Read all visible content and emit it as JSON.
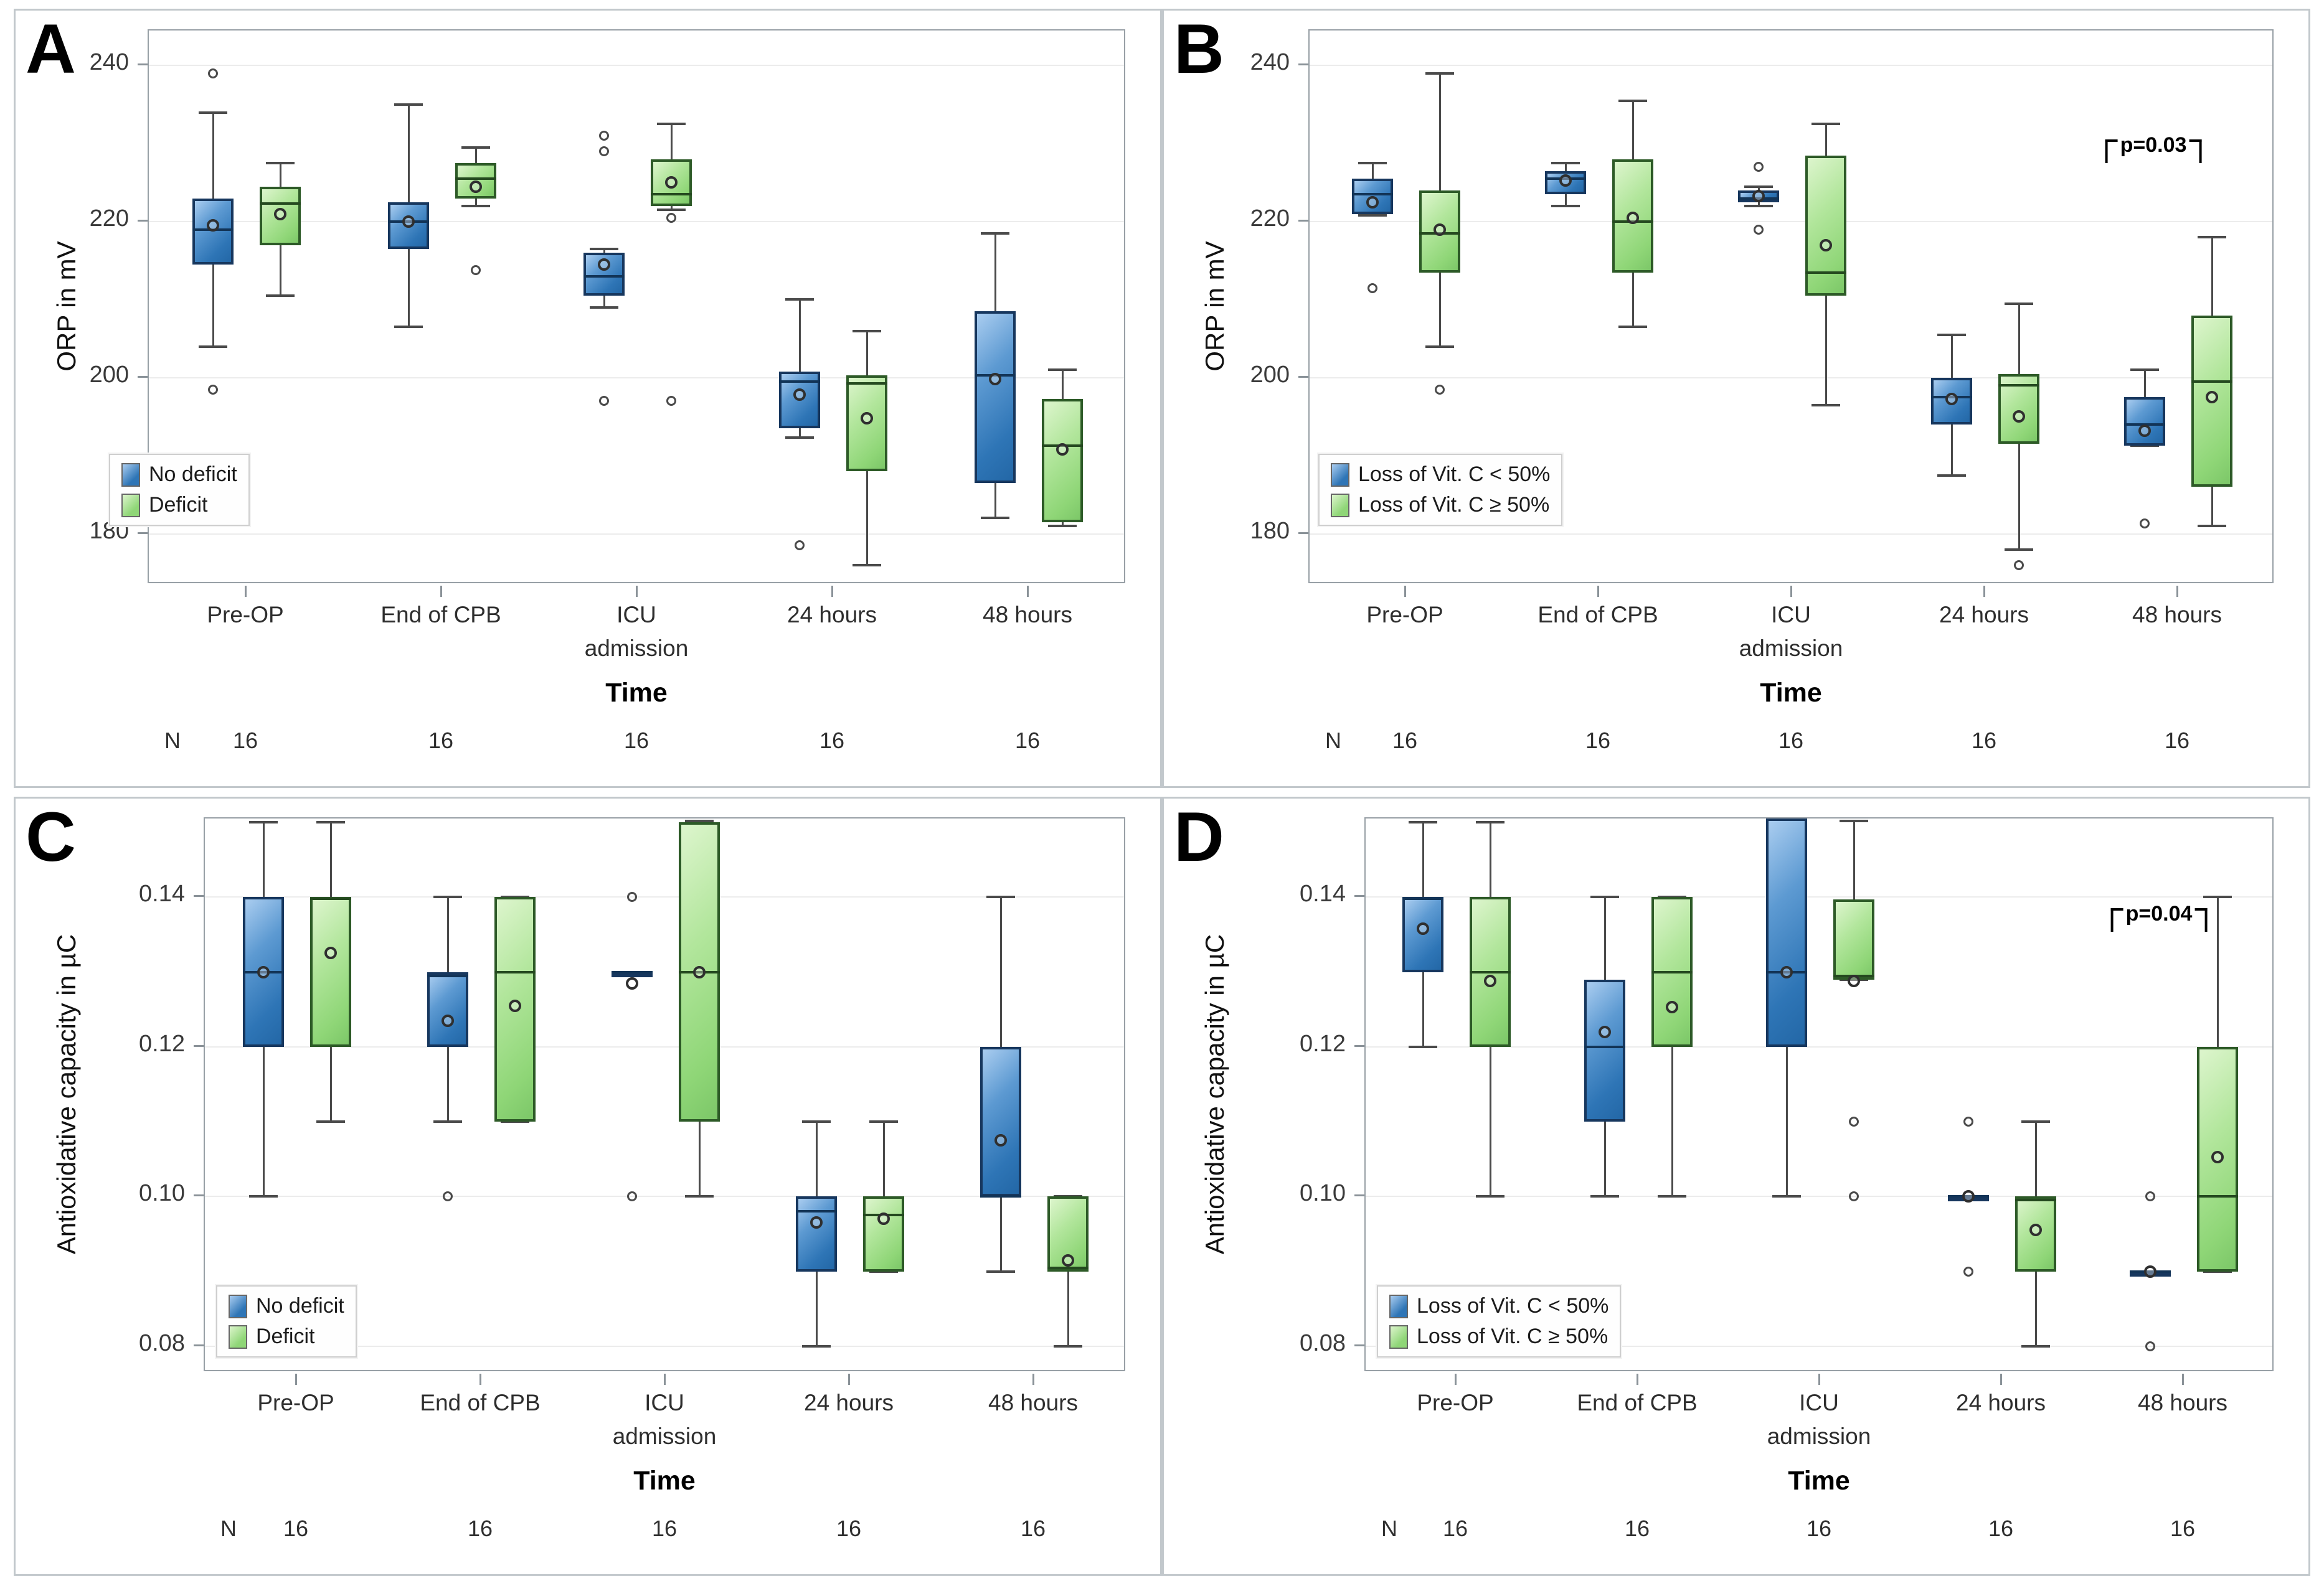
{
  "figure": {
    "background": "#ffffff",
    "colors": {
      "blue_fill_light": "#aacdf0",
      "blue_fill_dark": "#2e75b6",
      "blue_border": "#17375e",
      "green_fill_light": "#ddf5cd",
      "green_fill_dark": "#8fd677",
      "green_border": "#2d5a27",
      "whisker": "#4a4a4a",
      "grid": "#ececec",
      "frame": "#98a0a6",
      "panel_border": "#c2c8cc"
    }
  },
  "chart_data": [
    {
      "panel": "A",
      "type": "box",
      "ylabel": "ORP in mV",
      "xlabel": "Time",
      "ylim": [
        173.5,
        244.5
      ],
      "yticks": [
        240,
        220,
        200,
        180
      ],
      "ytick_labels": [
        "240",
        "220",
        "200",
        "180"
      ],
      "categories": [
        [
          "Pre-OP"
        ],
        [
          "End of CPB"
        ],
        [
          "ICU",
          "admission"
        ],
        [
          "24 hours"
        ],
        [
          "48 hours"
        ]
      ],
      "n_label": "N",
      "n_values": [
        "16",
        "16",
        "16",
        "16",
        "16"
      ],
      "legend": [
        {
          "label": "No deficit",
          "color": "blue"
        },
        {
          "label": "Deficit",
          "color": "green"
        }
      ],
      "annotation": null,
      "series": [
        {
          "name": "No deficit",
          "color": "blue",
          "boxes": [
            {
              "whislo": 204,
              "q1": 214.5,
              "med": 219,
              "q3": 223,
              "whishi": 234,
              "mean": 219.5,
              "outliers": [
                239,
                198.5
              ]
            },
            {
              "whislo": 206.5,
              "q1": 216.5,
              "med": 220,
              "q3": 222.5,
              "whishi": 235,
              "mean": 220,
              "outliers": []
            },
            {
              "whislo": 209,
              "q1": 210.5,
              "med": 213,
              "q3": 216,
              "whishi": 216.5,
              "mean": 214.5,
              "outliers": [
                231,
                229,
                197
              ]
            },
            {
              "whislo": 192.3,
              "q1": 193.5,
              "med": 199.5,
              "q3": 200.8,
              "whishi": 210,
              "mean": 197.8,
              "outliers": [
                178.5
              ]
            },
            {
              "whislo": 182,
              "q1": 186.5,
              "med": 200.3,
              "q3": 208.5,
              "whishi": 218.5,
              "mean": 199.8,
              "outliers": []
            }
          ]
        },
        {
          "name": "Deficit",
          "color": "green",
          "boxes": [
            {
              "whislo": 210.5,
              "q1": 217,
              "med": 222.3,
              "q3": 224.5,
              "whishi": 227.5,
              "mean": 221,
              "outliers": []
            },
            {
              "whislo": 222,
              "q1": 223,
              "med": 225.5,
              "q3": 227.5,
              "whishi": 229.5,
              "mean": 224.5,
              "outliers": [
                213.8
              ]
            },
            {
              "whislo": 221.5,
              "q1": 222,
              "med": 223.5,
              "q3": 228,
              "whishi": 232.5,
              "mean": 225,
              "outliers": [
                220.5,
                197
              ]
            },
            {
              "whislo": 176,
              "q1": 188,
              "med": 199.3,
              "q3": 200.3,
              "whishi": 206,
              "mean": 194.8,
              "outliers": []
            },
            {
              "whislo": 181,
              "q1": 181.5,
              "med": 191.3,
              "q3": 197.3,
              "whishi": 201,
              "mean": 190.8,
              "outliers": []
            }
          ]
        }
      ]
    },
    {
      "panel": "B",
      "type": "box",
      "ylabel": "ORP in mV",
      "xlabel": "Time",
      "ylim": [
        173.5,
        244.5
      ],
      "yticks": [
        240,
        220,
        200,
        180
      ],
      "ytick_labels": [
        "240",
        "220",
        "200",
        "180"
      ],
      "categories": [
        [
          "Pre-OP"
        ],
        [
          "End of CPB"
        ],
        [
          "ICU",
          "admission"
        ],
        [
          "24 hours"
        ],
        [
          "48 hours"
        ]
      ],
      "n_label": "N",
      "n_values": [
        "16",
        "16",
        "16",
        "16",
        "16"
      ],
      "legend": [
        {
          "label": "Loss of Vit. C < 50%",
          "color": "blue"
        },
        {
          "label": "Loss of Vit. C ≥ 50%",
          "color": "green"
        }
      ],
      "annotation": {
        "text": "p=0.03",
        "value": 230.5
      },
      "series": [
        {
          "name": "Loss of Vit. C < 50%",
          "color": "blue",
          "boxes": [
            {
              "whislo": 220.8,
              "q1": 221,
              "med": 223.5,
              "q3": 225.5,
              "whishi": 227.5,
              "mean": 222.5,
              "outliers": [
                211.5
              ]
            },
            {
              "whislo": 222,
              "q1": 223.5,
              "med": 225.5,
              "q3": 226.5,
              "whishi": 227.5,
              "mean": 225.3,
              "outliers": []
            },
            {
              "whislo": 222,
              "q1": 222.5,
              "med": 223,
              "q3": 224,
              "whishi": 224.5,
              "mean": 223.3,
              "outliers": [
                227,
                219
              ]
            },
            {
              "whislo": 187.5,
              "q1": 194,
              "med": 197.5,
              "q3": 200,
              "whishi": 205.5,
              "mean": 197.3,
              "outliers": []
            },
            {
              "whislo": 191.3,
              "q1": 191.3,
              "med": 194,
              "q3": 197.5,
              "whishi": 201,
              "mean": 193.2,
              "outliers": [
                181.3
              ]
            }
          ]
        },
        {
          "name": "Loss of Vit. C ≥ 50%",
          "color": "green",
          "boxes": [
            {
              "whislo": 204,
              "q1": 213.5,
              "med": 218.5,
              "q3": 224,
              "whishi": 239,
              "mean": 219,
              "outliers": [
                198.5
              ]
            },
            {
              "whislo": 206.5,
              "q1": 213.5,
              "med": 220,
              "q3": 228,
              "whishi": 235.5,
              "mean": 220.5,
              "outliers": []
            },
            {
              "whislo": 196.5,
              "q1": 210.5,
              "med": 213.5,
              "q3": 228.5,
              "whishi": 232.5,
              "mean": 217,
              "outliers": []
            },
            {
              "whislo": 178,
              "q1": 191.5,
              "med": 199,
              "q3": 200.5,
              "whishi": 209.5,
              "mean": 195,
              "outliers": [
                176
              ]
            },
            {
              "whislo": 181,
              "q1": 186,
              "med": 199.5,
              "q3": 208,
              "whishi": 218,
              "mean": 197.5,
              "outliers": []
            }
          ]
        }
      ]
    },
    {
      "panel": "C",
      "type": "box",
      "ylabel": "Antioxidative capacity in µC",
      "xlabel": "Time",
      "ylim": [
        0.0765,
        0.1505
      ],
      "yticks": [
        0.14,
        0.12,
        0.1,
        0.08
      ],
      "ytick_labels": [
        "0.14",
        "0.12",
        "0.10",
        "0.08"
      ],
      "categories": [
        [
          "Pre-OP"
        ],
        [
          "End of CPB"
        ],
        [
          "ICU",
          "admission"
        ],
        [
          "24 hours"
        ],
        [
          "48 hours"
        ]
      ],
      "n_label": "N",
      "n_values": [
        "16",
        "16",
        "16",
        "16",
        "16"
      ],
      "legend": [
        {
          "label": "No deficit",
          "color": "blue"
        },
        {
          "label": "Deficit",
          "color": "green"
        }
      ],
      "annotation": null,
      "series": [
        {
          "name": "No deficit",
          "color": "blue",
          "boxes": [
            {
              "whislo": 0.1,
              "q1": 0.12,
              "med": 0.13,
              "q3": 0.14,
              "whishi": 0.15,
              "mean": 0.13,
              "outliers": []
            },
            {
              "whislo": 0.11,
              "q1": 0.12,
              "med": 0.1295,
              "q3": 0.13,
              "whishi": 0.14,
              "mean": 0.1235,
              "outliers": [
                0.1
              ]
            },
            {
              "whislo": 0.13,
              "q1": 0.13,
              "med": 0.13,
              "q3": 0.13,
              "whishi": 0.13,
              "mean": 0.1285,
              "outliers": [
                0.14,
                0.1
              ]
            },
            {
              "whislo": 0.08,
              "q1": 0.09,
              "med": 0.098,
              "q3": 0.1,
              "whishi": 0.11,
              "mean": 0.0965,
              "outliers": []
            },
            {
              "whislo": 0.09,
              "q1": 0.1,
              "med": 0.1,
              "q3": 0.12,
              "whishi": 0.14,
              "mean": 0.1075,
              "outliers": []
            }
          ]
        },
        {
          "name": "Deficit",
          "color": "green",
          "boxes": [
            {
              "whislo": 0.11,
              "q1": 0.12,
              "med": 0.1398,
              "q3": 0.14,
              "whishi": 0.15,
              "mean": 0.1325,
              "outliers": []
            },
            {
              "whislo": 0.11,
              "q1": 0.11,
              "med": 0.13,
              "q3": 0.14,
              "whishi": 0.14,
              "mean": 0.1255,
              "outliers": []
            },
            {
              "whislo": 0.1,
              "q1": 0.11,
              "med": 0.13,
              "q3": 0.15,
              "whishi": 0.1502,
              "mean": 0.13,
              "outliers": []
            },
            {
              "whislo": 0.09,
              "q1": 0.09,
              "med": 0.0975,
              "q3": 0.1,
              "whishi": 0.11,
              "mean": 0.097,
              "outliers": []
            },
            {
              "whislo": 0.08,
              "q1": 0.09,
              "med": 0.0905,
              "q3": 0.1,
              "whishi": 0.1,
              "mean": 0.0915,
              "outliers": []
            }
          ]
        }
      ]
    },
    {
      "panel": "D",
      "type": "box",
      "ylabel": "Antioxidative capacity in µC",
      "xlabel": "Time",
      "ylim": [
        0.0765,
        0.1505
      ],
      "yticks": [
        0.14,
        0.12,
        0.1,
        0.08
      ],
      "ytick_labels": [
        "0.14",
        "0.12",
        "0.10",
        "0.08"
      ],
      "categories": [
        [
          "Pre-OP"
        ],
        [
          "End of CPB"
        ],
        [
          "ICU",
          "admission"
        ],
        [
          "24 hours"
        ],
        [
          "48 hours"
        ]
      ],
      "n_label": "N",
      "n_values": [
        "16",
        "16",
        "16",
        "16",
        "16"
      ],
      "legend": [
        {
          "label": "Loss of Vit. C < 50%",
          "color": "blue"
        },
        {
          "label": "Loss of Vit. C ≥ 50%",
          "color": "green"
        }
      ],
      "annotation": {
        "text": "p=0.04",
        "value": 0.1385
      },
      "series": [
        {
          "name": "Loss of Vit. C < 50%",
          "color": "blue",
          "boxes": [
            {
              "whislo": 0.12,
              "q1": 0.13,
              "med": 0.1398,
              "q3": 0.14,
              "whishi": 0.15,
              "mean": 0.1358,
              "outliers": []
            },
            {
              "whislo": 0.1,
              "q1": 0.11,
              "med": 0.12,
              "q3": 0.129,
              "whishi": 0.14,
              "mean": 0.122,
              "outliers": []
            },
            {
              "whislo": 0.1,
              "q1": 0.12,
              "med": 0.13,
              "q3": 0.1505,
              "whishi": 0.1505,
              "mean": 0.13,
              "outliers": []
            },
            {
              "whislo": 0.1,
              "q1": 0.1,
              "med": 0.1,
              "q3": 0.1,
              "whishi": 0.1,
              "mean": 0.1,
              "outliers": [
                0.11,
                0.09
              ]
            },
            {
              "whislo": 0.09,
              "q1": 0.09,
              "med": 0.09,
              "q3": 0.09,
              "whishi": 0.09,
              "mean": 0.09,
              "outliers": [
                0.1,
                0.08
              ]
            }
          ]
        },
        {
          "name": "Loss of Vit. C ≥ 50%",
          "color": "green",
          "boxes": [
            {
              "whislo": 0.1,
              "q1": 0.12,
              "med": 0.13,
              "q3": 0.14,
              "whishi": 0.15,
              "mean": 0.1288,
              "outliers": []
            },
            {
              "whislo": 0.1,
              "q1": 0.12,
              "med": 0.13,
              "q3": 0.14,
              "whishi": 0.14,
              "mean": 0.1253,
              "outliers": []
            },
            {
              "whislo": 0.129,
              "q1": 0.129,
              "med": 0.1295,
              "q3": 0.1397,
              "whishi": 0.1502,
              "mean": 0.1288,
              "outliers": [
                0.11,
                0.1
              ]
            },
            {
              "whislo": 0.08,
              "q1": 0.09,
              "med": 0.0995,
              "q3": 0.1,
              "whishi": 0.11,
              "mean": 0.0955,
              "outliers": []
            },
            {
              "whislo": 0.09,
              "q1": 0.09,
              "med": 0.1,
              "q3": 0.12,
              "whishi": 0.14,
              "mean": 0.1053,
              "outliers": []
            }
          ]
        }
      ]
    }
  ]
}
